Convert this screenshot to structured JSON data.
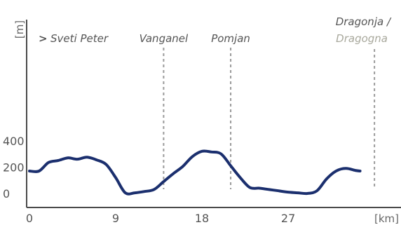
{
  "chart_data": {
    "type": "line",
    "title": "",
    "xlabel": "[km]",
    "ylabel": "[m]",
    "xlim": [
      0,
      34.5
    ],
    "ylim": [
      -120,
      450
    ],
    "x_ticks": [
      0,
      9,
      18,
      27
    ],
    "y_ticks": [
      0,
      200,
      400
    ],
    "grid": false,
    "series": [
      {
        "x": [
          0,
          1,
          2,
          3,
          4,
          5,
          6,
          7,
          8,
          9,
          10,
          11,
          12,
          13,
          14,
          15,
          16,
          17,
          18,
          19,
          20,
          21,
          22,
          23,
          24,
          25,
          26,
          27,
          28,
          29,
          30,
          31,
          32,
          33,
          34,
          34.5
        ],
        "values": [
          170,
          170,
          235,
          250,
          270,
          260,
          275,
          255,
          220,
          120,
          5,
          5,
          15,
          30,
          90,
          150,
          205,
          280,
          320,
          315,
          300,
          210,
          120,
          45,
          40,
          30,
          20,
          10,
          5,
          0,
          20,
          110,
          170,
          190,
          175,
          170
        ]
      }
    ],
    "markers": [
      {
        "x": 0,
        "label": "Sveti Peter",
        "arrow": ">"
      },
      {
        "x": 14,
        "label": "Vanganel"
      },
      {
        "x": 21,
        "label": "Pomjan"
      },
      {
        "x": 36,
        "label": "Dragonja /",
        "label_alt": "Dragogna"
      }
    ],
    "colors": {
      "line": "#1b2f6e",
      "axis": "#4a4a4a",
      "marker": "#9a9a9a",
      "alt_text": "#a8a89c"
    }
  }
}
